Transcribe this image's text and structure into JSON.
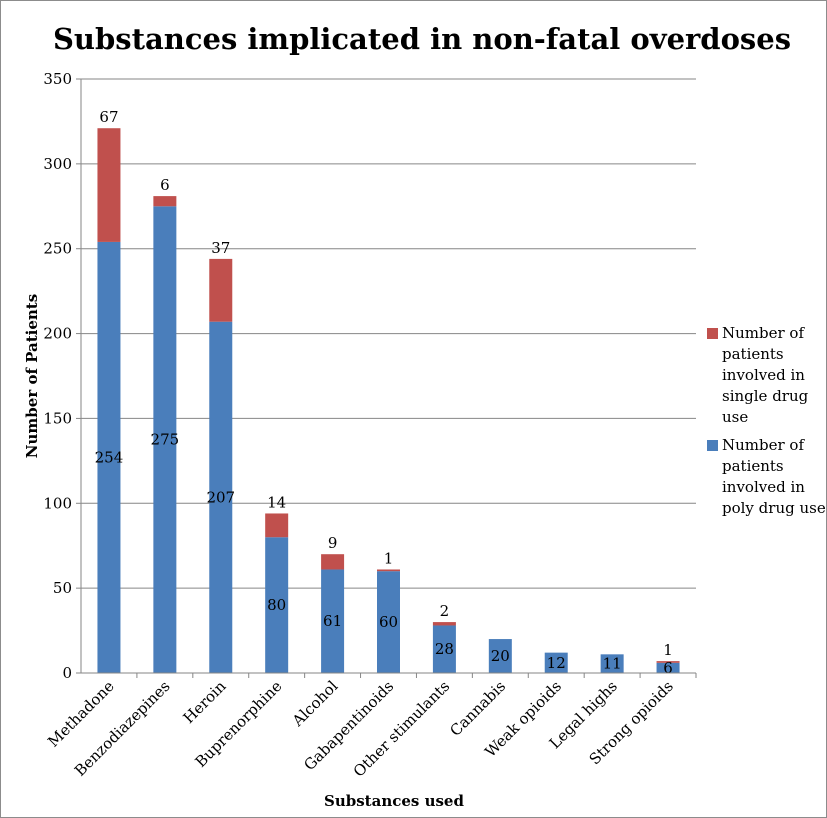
{
  "chart_data": {
    "type": "bar",
    "stacked": true,
    "title": "Substances implicated in non-fatal overdoses",
    "xlabel": "Substances used",
    "ylabel": "Number of Patients",
    "ylim": [
      0,
      350
    ],
    "yticks": [
      0,
      50,
      100,
      150,
      200,
      250,
      300,
      350
    ],
    "grid": true,
    "legend_position": "right",
    "categories": [
      "Methadone",
      "Benzodiazepines",
      "Heroin",
      "Buprenorphine",
      "Alcohol",
      "Gabapentinoids",
      "Other stimulants",
      "Cannabis",
      "Weak opioids",
      "Legal highs",
      "Strong opioids"
    ],
    "series": [
      {
        "name": "Number of patients involved in poly drug use",
        "color": "#4a7ebb",
        "values": [
          254,
          275,
          207,
          80,
          61,
          60,
          28,
          20,
          12,
          11,
          6
        ]
      },
      {
        "name": "Number of patients involved in single drug use",
        "color": "#c0504d",
        "values": [
          67,
          6,
          37,
          14,
          9,
          1,
          2,
          null,
          null,
          null,
          1
        ]
      }
    ]
  }
}
